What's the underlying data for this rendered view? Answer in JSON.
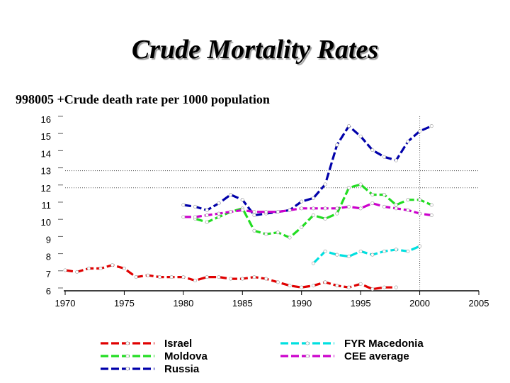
{
  "slide": {
    "title": "Crude Mortality Rates"
  },
  "chart_data": {
    "type": "line",
    "title": "998005 +Crude death rate per 1000 population",
    "xlabel": "",
    "ylabel": "",
    "xlim": [
      1970,
      2005
    ],
    "ylim": [
      6,
      16
    ],
    "x_ticks": [
      1970,
      1975,
      1980,
      1985,
      1990,
      1995,
      2000,
      2005
    ],
    "y_ticks": [
      6,
      7,
      8,
      9,
      10,
      11,
      12,
      13,
      14,
      15,
      16
    ],
    "grid": {
      "horizontal_dotted_at": [
        13,
        12
      ],
      "vertical_dotted_at": [
        2000
      ]
    },
    "legend_position": "bottom",
    "series": [
      {
        "name": "Israel",
        "color": "#e00000",
        "x": [
          1970,
          1971,
          1972,
          1973,
          1974,
          1975,
          1976,
          1977,
          1978,
          1979,
          1980,
          1981,
          1982,
          1983,
          1984,
          1985,
          1986,
          1987,
          1988,
          1989,
          1990,
          1991,
          1992,
          1993,
          1994,
          1995,
          1996,
          1997,
          1998
        ],
        "y": [
          7.2,
          7.1,
          7.3,
          7.3,
          7.5,
          7.3,
          6.8,
          6.9,
          6.8,
          6.8,
          6.8,
          6.6,
          6.8,
          6.8,
          6.7,
          6.7,
          6.8,
          6.7,
          6.5,
          6.3,
          6.2,
          6.3,
          6.5,
          6.3,
          6.2,
          6.4,
          6.1,
          6.2,
          6.2
        ]
      },
      {
        "name": "Moldova",
        "color": "#22dd22",
        "x": [
          1981,
          1982,
          1983,
          1984,
          1985,
          1986,
          1987,
          1988,
          1989,
          1990,
          1991,
          1992,
          1993,
          1994,
          1995,
          1996,
          1997,
          1998,
          1999,
          2000,
          2001
        ],
        "y": [
          10.2,
          10.0,
          10.3,
          10.6,
          10.8,
          9.5,
          9.3,
          9.4,
          9.1,
          9.7,
          10.4,
          10.2,
          10.5,
          12.0,
          12.2,
          11.6,
          11.6,
          11.0,
          11.3,
          11.3,
          11.0
        ]
      },
      {
        "name": "Russia",
        "color": "#0000aa",
        "x": [
          1980,
          1981,
          1982,
          1983,
          1984,
          1985,
          1986,
          1987,
          1988,
          1989,
          1990,
          1991,
          1992,
          1993,
          1994,
          1995,
          1996,
          1997,
          1998,
          1999,
          2000,
          2001
        ],
        "y": [
          11.0,
          10.9,
          10.7,
          11.1,
          11.6,
          11.3,
          10.4,
          10.5,
          10.6,
          10.7,
          11.2,
          11.4,
          12.2,
          14.5,
          15.6,
          15.0,
          14.2,
          13.8,
          13.6,
          14.7,
          15.3,
          15.6
        ]
      },
      {
        "name": "FYR Macedonia",
        "color": "#00e0e0",
        "x": [
          1991,
          1992,
          1993,
          1994,
          1995,
          1996,
          1997,
          1998,
          1999,
          2000
        ],
        "y": [
          7.6,
          8.3,
          8.1,
          8.0,
          8.3,
          8.1,
          8.3,
          8.4,
          8.3,
          8.6
        ]
      },
      {
        "name": "CEE average",
        "color": "#cc00cc",
        "x": [
          1980,
          1981,
          1982,
          1983,
          1984,
          1985,
          1986,
          1987,
          1988,
          1989,
          1990,
          1991,
          1992,
          1993,
          1994,
          1995,
          1996,
          1997,
          1998,
          1999,
          2000,
          2001
        ],
        "y": [
          10.3,
          10.3,
          10.4,
          10.5,
          10.6,
          10.7,
          10.6,
          10.6,
          10.6,
          10.7,
          10.8,
          10.8,
          10.8,
          10.8,
          10.9,
          10.8,
          11.1,
          10.9,
          10.8,
          10.7,
          10.5,
          10.4
        ]
      }
    ]
  }
}
